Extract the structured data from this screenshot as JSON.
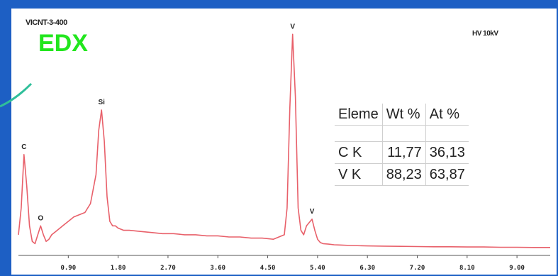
{
  "sample_id": "VICNT-3-400",
  "hv_label": "HV 10kV",
  "title": "EDX",
  "table": {
    "headers": [
      "Eleme",
      "Wt %",
      "At %"
    ],
    "rows": [
      {
        "element": "C K",
        "wt": "11,77",
        "at": "36,13"
      },
      {
        "element": "V K",
        "wt": "88,23",
        "at": "63,87"
      }
    ]
  },
  "colors": {
    "background": "#1d5fc4",
    "spectrum": "#e8606a",
    "title": "#22e61e",
    "axis": "#555555"
  },
  "chart_data": {
    "type": "line",
    "title": "EDX",
    "xlabel": "",
    "ylabel": "",
    "xlim": [
      0,
      9.6
    ],
    "ylim": [
      0,
      100
    ],
    "grid": false,
    "x_ticks": [
      0.9,
      1.8,
      2.7,
      3.6,
      4.5,
      5.4,
      6.3,
      7.2,
      8.1,
      9.0
    ],
    "x_tick_labels": [
      "0.90",
      "1.80",
      "2.70",
      "3.60",
      "4.50",
      "5.40",
      "6.30",
      "7.20",
      "8.10",
      "9.00"
    ],
    "series": [
      {
        "x": [
          0.0,
          0.05,
          0.1,
          0.15,
          0.2,
          0.25,
          0.3,
          0.35,
          0.4,
          0.45,
          0.5,
          0.55,
          0.6,
          0.7,
          0.8,
          0.9,
          1.0,
          1.1,
          1.2,
          1.3,
          1.4,
          1.45,
          1.5,
          1.55,
          1.6,
          1.65,
          1.7,
          1.75,
          1.8,
          1.9,
          2.0,
          2.2,
          2.4,
          2.6,
          2.8,
          3.0,
          3.2,
          3.4,
          3.6,
          3.8,
          4.0,
          4.2,
          4.4,
          4.6,
          4.8,
          4.85,
          4.9,
          4.95,
          5.0,
          5.05,
          5.1,
          5.15,
          5.2,
          5.3,
          5.35,
          5.4,
          5.45,
          5.5,
          5.6,
          5.7,
          5.8,
          6.0,
          6.3,
          6.6,
          6.9,
          7.2,
          7.5,
          7.8,
          8.1,
          8.4,
          8.7,
          9.0,
          9.3,
          9.6
        ],
        "y": [
          8,
          20,
          44,
          30,
          12,
          5,
          4,
          8,
          12,
          8,
          5,
          6,
          8,
          10,
          12,
          14,
          16,
          17,
          18,
          22,
          35,
          55,
          64,
          50,
          25,
          14,
          12,
          12,
          11,
          10,
          10,
          9.5,
          9,
          8.5,
          8.5,
          8,
          8,
          7.5,
          7.5,
          7,
          7,
          6.5,
          6.5,
          6,
          8,
          20,
          65,
          98,
          70,
          20,
          10,
          8,
          12,
          15,
          10,
          6,
          4.5,
          4,
          3.8,
          3.5,
          3.4,
          3.2,
          3,
          2.9,
          2.8,
          2.7,
          2.6,
          2.6,
          2.5,
          2.5,
          2.4,
          2.4,
          2.3,
          2.3
        ]
      }
    ],
    "peak_labels": [
      {
        "text": "C",
        "x": 0.1,
        "y": 44
      },
      {
        "text": "O",
        "x": 0.4,
        "y": 12
      },
      {
        "text": "Si",
        "x": 1.5,
        "y": 64
      },
      {
        "text": "V",
        "x": 4.95,
        "y": 98
      },
      {
        "text": "V",
        "x": 5.3,
        "y": 15
      }
    ]
  }
}
